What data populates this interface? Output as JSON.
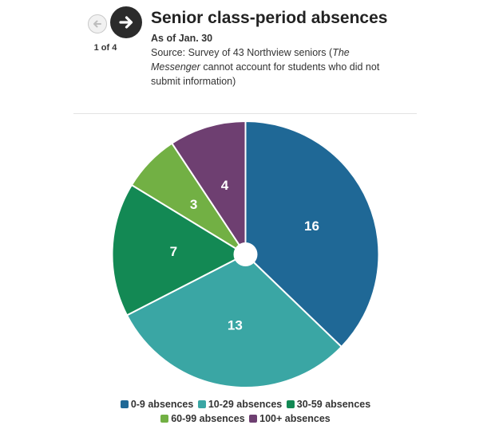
{
  "nav": {
    "prev_icon": "arrow-left-icon",
    "next_icon": "arrow-right-icon",
    "page_indicator": "1 of 4"
  },
  "header": {
    "title": "Senior class-period absences",
    "subtitle": "As of Jan. 30",
    "source_prefix": "Survey of 43 Northview seniors (",
    "source_prefix_label": "Source: ",
    "source_em": "The Messenger",
    "source_suffix": " cannot account for students who did not submit information)"
  },
  "colors": {
    "0-9": "#1f6896",
    "10-29": "#3aa6a4",
    "30-59": "#138954",
    "60-99": "#72b044",
    "100+": "#6e3f71"
  },
  "chart_data": {
    "type": "pie",
    "title": "Senior class-period absences",
    "subtitle": "As of Jan. 30",
    "categories": [
      "0-9 absences",
      "10-29 absences",
      "30-59 absences",
      "60-99 absences",
      "100+ absences"
    ],
    "values": [
      16,
      13,
      7,
      3,
      4
    ],
    "colors": [
      "#1f6896",
      "#3aa6a4",
      "#138954",
      "#72b044",
      "#6e3f71"
    ],
    "legend_position": "bottom"
  }
}
